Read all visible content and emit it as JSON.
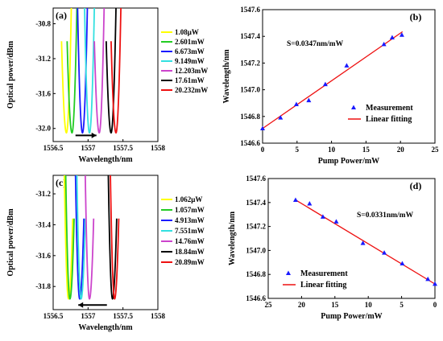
{
  "chart_data": [
    {
      "panel_label": "(a)",
      "type": "line",
      "xlabel": "Wavelength/nm",
      "ylabel": "Optical power/dBm",
      "xlim": [
        1556.5,
        1558.0
      ],
      "ylim": [
        -32.15,
        -30.62
      ],
      "xticks": [
        "1556.5",
        "1557",
        "1557.5",
        "1558"
      ],
      "yticks": [
        "-30.8",
        "-31.2",
        "-31.6",
        "-32.0"
      ],
      "xtick_values": [
        1556.5,
        1557.0,
        1557.5,
        1558.0
      ],
      "ytick_values": [
        -30.8,
        -31.2,
        -31.6,
        -32.0
      ],
      "dip_min": -32.05,
      "edge_power": -30.62,
      "half_width": 0.07,
      "legend_position": "right",
      "arrow": {
        "from": 1556.82,
        "to": 1557.12,
        "y": -32.08
      },
      "series": [
        {
          "name": "1.08μW",
          "color": "#ffff00",
          "center_wavelength": 1556.69,
          "edge_left": -31.0,
          "edge_right": -30.62
        },
        {
          "name": "2.601mW",
          "color": "#22cc22",
          "center_wavelength": 1556.77,
          "edge_left": -31.0,
          "edge_right": -30.62
        },
        {
          "name": "6.673mW",
          "color": "#1a1aff",
          "center_wavelength": 1556.92,
          "edge_left": -30.62,
          "edge_right": -30.62
        },
        {
          "name": "9.149mW",
          "color": "#33e0e0",
          "center_wavelength": 1557.02,
          "edge_left": -30.62,
          "edge_right": -30.62
        },
        {
          "name": "12.203mW",
          "color": "#cc44cc",
          "center_wavelength": 1557.16,
          "edge_left": -31.0,
          "edge_right": -30.62
        },
        {
          "name": "17.61mW",
          "color": "#000000",
          "center_wavelength": 1557.33,
          "edge_left": -31.0,
          "edge_right": -30.62
        },
        {
          "name": "20.232mW",
          "color": "#ee1111",
          "center_wavelength": 1557.4,
          "edge_left": -31.0,
          "edge_right": -30.62
        }
      ]
    },
    {
      "panel_label": "(b)",
      "type": "scatter",
      "xlabel": "Pump Power/mW",
      "ylabel": "Wavelength/nm",
      "xlim": [
        0,
        25
      ],
      "ylim": [
        1546.6,
        1547.6
      ],
      "xticks": [
        "0",
        "5",
        "10",
        "15",
        "20",
        "25"
      ],
      "yticks": [
        "1546.6",
        "1546.8",
        "1547.0",
        "1547.2",
        "1547.4",
        "1547.6"
      ],
      "xtick_values": [
        0,
        5,
        10,
        15,
        20,
        25
      ],
      "ytick_values": [
        1546.6,
        1546.8,
        1547.0,
        1547.2,
        1547.4,
        1547.6
      ],
      "annotation": "S=0.0347nm/mW",
      "legend_position": "bottom-right",
      "measurement": {
        "name": "Measurement",
        "color": "#1a1aff",
        "x": [
          0,
          2.6,
          4.9,
          6.7,
          9.1,
          12.2,
          17.6,
          18.8,
          20.2
        ],
        "y": [
          1546.71,
          1546.79,
          1546.89,
          1546.92,
          1547.04,
          1547.18,
          1547.34,
          1547.39,
          1547.41
        ]
      },
      "fit": {
        "name": "Linear fitting",
        "color": "#ee1111",
        "x": [
          0,
          20.3
        ],
        "y": [
          1546.71,
          1547.435
        ]
      }
    },
    {
      "panel_label": "(c)",
      "type": "line",
      "xlabel": "Wavelength/nm",
      "ylabel": "Optical power/dBm",
      "xlim": [
        1556.5,
        1558.0
      ],
      "ylim": [
        -31.95,
        -31.08
      ],
      "xticks": [
        "1556.5",
        "1557",
        "1557.5",
        "1558"
      ],
      "yticks": [
        "-31.2",
        "-31.4",
        "-31.6",
        "-31.8"
      ],
      "xtick_values": [
        1556.5,
        1557.0,
        1557.5,
        1558.0
      ],
      "ytick_values": [
        -31.2,
        -31.4,
        -31.6,
        -31.8
      ],
      "dip_min": -31.88,
      "edge_power": -31.08,
      "half_width": 0.06,
      "legend_position": "right",
      "arrow": {
        "from": 1557.27,
        "to": 1556.86,
        "y": -31.92
      },
      "series": [
        {
          "name": "1.062μW",
          "color": "#ffff00",
          "center_wavelength": 1556.72,
          "edge_left": -31.08,
          "edge_right": -31.36
        },
        {
          "name": "1.057mW",
          "color": "#22cc22",
          "center_wavelength": 1556.74,
          "edge_left": -31.08,
          "edge_right": -31.36
        },
        {
          "name": "4.913mW",
          "color": "#1a1aff",
          "center_wavelength": 1556.88,
          "edge_left": -31.08,
          "edge_right": -31.36
        },
        {
          "name": "7.551mW",
          "color": "#33e0e0",
          "center_wavelength": 1556.9,
          "edge_left": -31.08,
          "edge_right": -31.36
        },
        {
          "name": "14.76mW",
          "color": "#cc44cc",
          "center_wavelength": 1557.02,
          "edge_left": -31.08,
          "edge_right": -31.36
        },
        {
          "name": "18.84mW",
          "color": "#000000",
          "center_wavelength": 1557.35,
          "edge_left": -31.08,
          "edge_right": -31.36
        },
        {
          "name": "20.89mW",
          "color": "#ee1111",
          "center_wavelength": 1557.38,
          "edge_left": -31.08,
          "edge_right": -31.36
        }
      ]
    },
    {
      "panel_label": "(d)",
      "type": "scatter",
      "xlabel": "Pump Power/mW",
      "ylabel": "Wavelength/nm",
      "xlim": [
        25,
        0
      ],
      "x_reversed": true,
      "ylim": [
        1546.6,
        1547.6
      ],
      "xticks": [
        "25",
        "20",
        "15",
        "10",
        "5",
        "0"
      ],
      "yticks": [
        "1546.6",
        "1546.8",
        "1547.0",
        "1547.2",
        "1547.4",
        "1547.6"
      ],
      "xtick_values": [
        25,
        20,
        15,
        10,
        5,
        0
      ],
      "ytick_values": [
        1546.6,
        1546.8,
        1547.0,
        1547.2,
        1547.4,
        1547.6
      ],
      "annotation": "S=0.0331nm/mW",
      "legend_position": "bottom-left",
      "measurement": {
        "name": "Measurement",
        "color": "#1a1aff",
        "x": [
          20.9,
          18.8,
          16.8,
          14.8,
          10.8,
          7.6,
          4.9,
          1.06,
          0
        ],
        "y": [
          1547.42,
          1547.39,
          1547.28,
          1547.24,
          1547.06,
          1546.98,
          1546.89,
          1546.76,
          1546.72
        ]
      },
      "fit": {
        "name": "Linear fitting",
        "color": "#ee1111",
        "x": [
          21.0,
          0
        ],
        "y": [
          1547.425,
          1546.72
        ]
      }
    }
  ]
}
